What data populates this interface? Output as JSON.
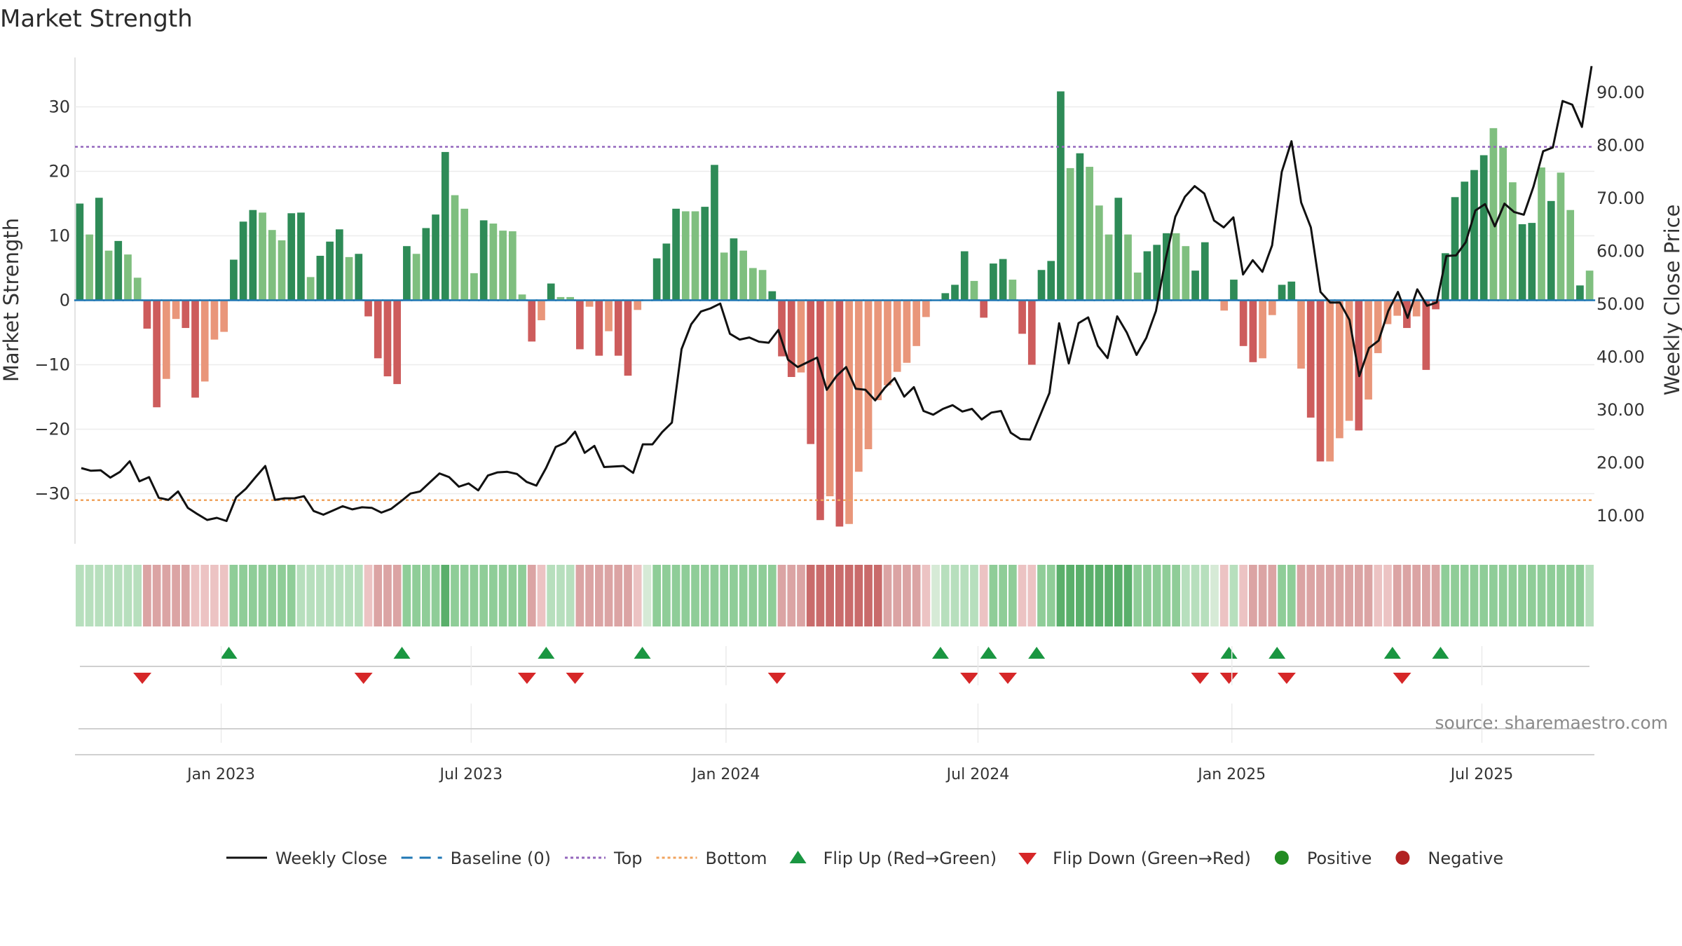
{
  "chart_data": {
    "type": "bar",
    "title": "Market Strength",
    "ylabel": "Market Strength",
    "y2label": "Weekly Close Price",
    "ylim": [
      -38,
      38
    ],
    "y2lim": [
      2.5,
      98
    ],
    "yticks": [
      -30,
      -20,
      -10,
      0,
      10,
      20,
      30
    ],
    "yticklabels": [
      "−30",
      "−20",
      "−10",
      "0",
      "10",
      "20",
      "30"
    ],
    "y2ticks": [
      10,
      20,
      30,
      40,
      50,
      60,
      70,
      80,
      90
    ],
    "y2ticklabels": [
      "10.00",
      "20.00",
      "30.00",
      "40.00",
      "50.00",
      "60.00",
      "70.00",
      "80.00",
      "90.00"
    ],
    "xticklabels": [
      "Jan 2023",
      "Jul 2023",
      "Jan 2024",
      "Jul 2024",
      "Jan 2025",
      "Jul 2025"
    ],
    "xtick_weeks": [
      15.2,
      41.2,
      67.7,
      93.9,
      120.3,
      146.3
    ],
    "top_line": 23.8,
    "bottom_line": -31,
    "grid": true,
    "strength": [
      15,
      10.2,
      15.9,
      7.7,
      9.2,
      7.1,
      3.5,
      -4.4,
      -16.6,
      -12.2,
      -2.9,
      -4.3,
      -15.1,
      -12.6,
      -6.1,
      -4.9,
      6.3,
      12.2,
      14,
      13.6,
      10.9,
      9.3,
      13.5,
      13.6,
      3.6,
      6.9,
      9.1,
      11,
      6.7,
      7.2,
      -2.5,
      -9,
      -11.8,
      -13,
      8.4,
      7.2,
      11.2,
      13.3,
      23,
      16.3,
      14.2,
      4.2,
      12.4,
      11.9,
      10.8,
      10.7,
      0.9,
      -6.4,
      -3.1,
      2.6,
      0.5,
      0.5,
      -7.6,
      -1,
      -8.6,
      -4.8,
      -8.6,
      -11.7,
      -1.5,
      0,
      6.5,
      8.8,
      14.2,
      13.8,
      13.8,
      14.5,
      21,
      7.4,
      9.6,
      7.7,
      5,
      4.7,
      1.4,
      -8.7,
      -11.9,
      -11.2,
      -22.3,
      -34.1,
      -30.4,
      -35.1,
      -34.7,
      -26.6,
      -23.1,
      -15.5,
      -13.2,
      -11.1,
      -9.7,
      -7.1,
      -2.6,
      0,
      1.1,
      2.4,
      7.6,
      3,
      -2.7,
      5.7,
      6.4,
      3.2,
      -5.2,
      -10,
      4.7,
      6.1,
      32.4,
      20.5,
      22.8,
      20.7,
      14.7,
      10.2,
      15.9,
      10.2,
      4.3,
      7.6,
      8.6,
      10.4,
      10.4,
      8.4,
      4.6,
      9,
      0,
      -1.6,
      3.2,
      -7.1,
      -9.6,
      -9,
      -2.3,
      2.4,
      2.9,
      -10.6,
      -18.2,
      -25,
      -25,
      -21.4,
      -18.7,
      -20.2,
      -15.4,
      -8.2,
      -3.7,
      -2.4,
      -4.3,
      -2.5,
      -10.8,
      -1.4,
      7.3,
      16,
      18.4,
      20.2,
      22.5,
      26.7,
      23.7,
      18.3,
      11.8,
      12,
      20.6,
      15.4,
      19.8,
      14,
      2.3,
      4.6
    ],
    "strength_shade": [
      "s",
      "w",
      "s",
      "w",
      "s",
      "w",
      "w",
      "s",
      "s",
      "w",
      "w",
      "s",
      "s",
      "w",
      "w",
      "w",
      "s",
      "s",
      "s",
      "w",
      "w",
      "w",
      "s",
      "s",
      "w",
      "s",
      "s",
      "s",
      "w",
      "s",
      "s",
      "s",
      "s",
      "s",
      "s",
      "w",
      "s",
      "s",
      "s",
      "w",
      "w",
      "w",
      "s",
      "w",
      "w",
      "w",
      "w",
      "s",
      "w",
      "s",
      "w",
      "w",
      "s",
      "w",
      "s",
      "w",
      "s",
      "s",
      "w",
      "s",
      "s",
      "s",
      "s",
      "w",
      "w",
      "s",
      "s",
      "w",
      "s",
      "w",
      "w",
      "w",
      "s",
      "s",
      "s",
      "w",
      "s",
      "s",
      "w",
      "s",
      "w",
      "w",
      "w",
      "w",
      "w",
      "w",
      "w",
      "w",
      "w",
      "s",
      "s",
      "s",
      "s",
      "w",
      "s",
      "s",
      "s",
      "w",
      "s",
      "s",
      "s",
      "s",
      "s",
      "w",
      "s",
      "w",
      "w",
      "w",
      "s",
      "w",
      "w",
      "s",
      "s",
      "s",
      "w",
      "w",
      "s",
      "s",
      "s",
      "w",
      "s",
      "s",
      "s",
      "w",
      "w",
      "s",
      "s",
      "w",
      "s",
      "s",
      "w",
      "w",
      "w",
      "s",
      "w",
      "w",
      "w",
      "w",
      "s",
      "w",
      "s",
      "s",
      "s",
      "s",
      "s",
      "s",
      "s",
      "w",
      "w",
      "w",
      "s",
      "s",
      "w",
      "s",
      "w",
      "w",
      "s"
    ],
    "close": [
      19,
      18.5,
      18.6,
      17.2,
      18.3,
      20.3,
      16.5,
      17.3,
      13.4,
      13,
      14.6,
      11.5,
      10.3,
      9.2,
      9.6,
      9,
      13.5,
      15.1,
      17.3,
      19.4,
      13,
      13.3,
      13.3,
      13.7,
      10.9,
      10.2,
      11,
      11.8,
      11.2,
      11.6,
      11.5,
      10.6,
      11.3,
      12.7,
      14.2,
      14.6,
      16.3,
      18,
      17.3,
      15.5,
      16.1,
      14.8,
      17.6,
      18.2,
      18.3,
      17.9,
      16.4,
      15.7,
      19,
      23,
      23.8,
      25.9,
      21.9,
      23.2,
      19.2,
      19.3,
      19.4,
      18.1,
      23.5,
      23.5,
      25.8,
      27.6,
      41.5,
      46.2,
      48.6,
      49.2,
      50.1,
      44.4,
      43.3,
      43.7,
      42.9,
      42.7,
      45.1,
      39.5,
      38.1,
      39,
      39.9,
      33.8,
      36.4,
      38.1,
      34,
      33.8,
      31.8,
      34.2,
      36,
      32.5,
      34.3,
      29.8,
      29.1,
      30.2,
      30.9,
      29.7,
      30.2,
      28.2,
      29.5,
      29.8,
      25.7,
      24.5,
      24.4,
      28.8,
      33.2,
      46.4,
      38.8,
      46.4,
      47.5,
      42.1,
      39.8,
      47.7,
      44.6,
      40.4,
      43.6,
      48.7,
      58.5,
      66.5,
      70.3,
      72.3,
      70.9,
      65.8,
      64.5,
      66.4,
      55.6,
      58.3,
      56.1,
      61.1,
      75,
      80.8,
      69.2,
      64.5,
      52.3,
      50.3,
      50.3,
      47,
      36.4,
      41.7,
      43.1,
      48.7,
      52.3,
      47.4,
      52.8,
      49.7,
      50.3,
      59.1,
      59.2,
      61.7,
      67.7,
      68.9,
      64.7,
      69,
      67.4,
      66.9,
      72.2,
      78.9,
      79.6,
      88.4,
      87.7,
      83.5,
      95
    ],
    "heat_strength": [
      1,
      1,
      1,
      1,
      1,
      1,
      1,
      2,
      2,
      2,
      2,
      2,
      1,
      1,
      1,
      1,
      2,
      2,
      2,
      2,
      2,
      2,
      2,
      1,
      1,
      1,
      1,
      1,
      1,
      1,
      1,
      2,
      2,
      2,
      2,
      2,
      2,
      2,
      3,
      2,
      2,
      2,
      2,
      2,
      2,
      2,
      2,
      2,
      1,
      1,
      1,
      1,
      2,
      2,
      2,
      2,
      2,
      2,
      1,
      1,
      2,
      2,
      2,
      2,
      2,
      2,
      2,
      2,
      2,
      2,
      2,
      2,
      2,
      2,
      2,
      2,
      3,
      3,
      3,
      3,
      3,
      3,
      3,
      3,
      2,
      2,
      2,
      2,
      1,
      1,
      1,
      1,
      1,
      1,
      1,
      2,
      2,
      2,
      1,
      1,
      2,
      2,
      3,
      3,
      3,
      3,
      3,
      3,
      3,
      3,
      2,
      2,
      2,
      2,
      2,
      1,
      1,
      1,
      1,
      1,
      1,
      1,
      2,
      2,
      2,
      2,
      2,
      2,
      2,
      2,
      2,
      2,
      2,
      2,
      2,
      1,
      1,
      2,
      2,
      2,
      2,
      2,
      2,
      2,
      2,
      2,
      2,
      2,
      2,
      2,
      2,
      2,
      2,
      2,
      2,
      2,
      2,
      1
    ],
    "flip_up_weeks": [
      16,
      34,
      49,
      59,
      90,
      95,
      100,
      120,
      125,
      137,
      142
    ],
    "flip_down_weeks": [
      7,
      30,
      47,
      52,
      73,
      93,
      97,
      117,
      120,
      126,
      138
    ],
    "legend": [
      {
        "label": "Weekly Close",
        "kind": "line"
      },
      {
        "label": "Baseline (0)",
        "kind": "dash"
      },
      {
        "label": "Top",
        "kind": "dotted-top"
      },
      {
        "label": "Bottom",
        "kind": "dotted-bottom"
      },
      {
        "label": "Flip Up (Red→Green)",
        "kind": "tri-up"
      },
      {
        "label": "Flip Down (Green→Red)",
        "kind": "tri-down"
      },
      {
        "label": "Positive",
        "kind": "dot-pos"
      },
      {
        "label": "Negative",
        "kind": "dot-neg"
      }
    ],
    "legend_placement": "bottom-center",
    "source": "source: sharemaestro.com",
    "colors": {
      "pos_strong": "#2e8b57",
      "pos_weak": "#7fbf7f",
      "neg_strong": "#cd5c5c",
      "neg_weak": "#e9967a",
      "close_line": "#111111",
      "baseline": "#1f77b4",
      "top": "#9467bd",
      "bottom": "#f0a35e",
      "flip_up": "#1a9641",
      "flip_down": "#d62728",
      "dot_pos": "#228b22",
      "dot_neg": "#b22222"
    }
  }
}
